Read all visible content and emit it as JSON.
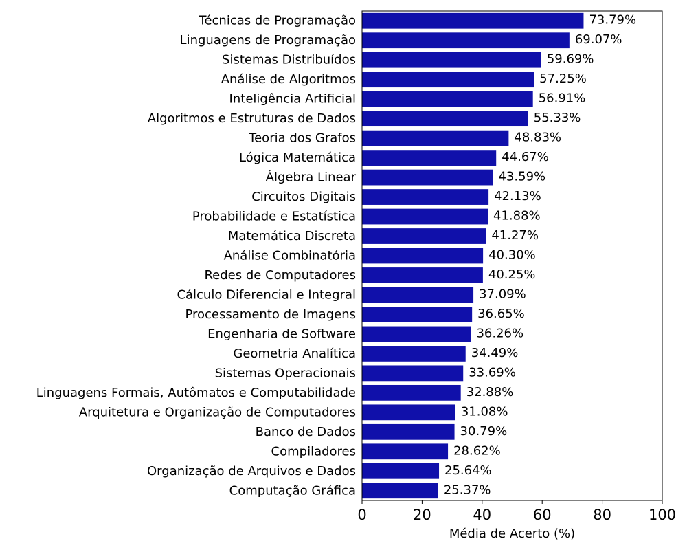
{
  "chart_data": {
    "type": "bar",
    "orientation": "horizontal",
    "title": "",
    "xlabel": "Média de Acerto (%)",
    "ylabel": "",
    "xlim": [
      0,
      100
    ],
    "xticks": [
      0,
      20,
      40,
      60,
      80,
      100
    ],
    "grid": false,
    "bar_color": "#1010aa",
    "categories": [
      "Técnicas de Programação",
      "Linguagens de Programação",
      "Sistemas Distribuídos",
      "Análise de Algoritmos",
      "Inteligência Artificial",
      "Algoritmos e Estruturas de Dados",
      "Teoria dos Grafos",
      "Lógica Matemática",
      "Álgebra Linear",
      "Circuitos Digitais",
      "Probabilidade e Estatística",
      "Matemática Discreta",
      "Análise Combinatória",
      "Redes de Computadores",
      "Cálculo Diferencial e Integral",
      "Processamento de Imagens",
      "Engenharia de Software",
      "Geometria Analítica",
      "Sistemas Operacionais",
      "Linguagens Formais, Autômatos e Computabilidade",
      "Arquitetura e Organização de Computadores",
      "Banco de Dados",
      "Compiladores",
      "Organização de Arquivos e Dados",
      "Computação Gráfica"
    ],
    "values": [
      73.79,
      69.07,
      59.69,
      57.25,
      56.91,
      55.33,
      48.83,
      44.67,
      43.59,
      42.13,
      41.88,
      41.27,
      40.3,
      40.25,
      37.09,
      36.65,
      36.26,
      34.49,
      33.69,
      32.88,
      31.08,
      30.79,
      28.62,
      25.64,
      25.37
    ],
    "data_labels": [
      "73.79%",
      "69.07%",
      "59.69%",
      "57.25%",
      "56.91%",
      "55.33%",
      "48.83%",
      "44.67%",
      "43.59%",
      "42.13%",
      "41.88%",
      "41.27%",
      "40.30%",
      "40.25%",
      "37.09%",
      "36.65%",
      "36.26%",
      "34.49%",
      "33.69%",
      "32.88%",
      "31.08%",
      "30.79%",
      "28.62%",
      "25.64%",
      "25.37%"
    ]
  }
}
